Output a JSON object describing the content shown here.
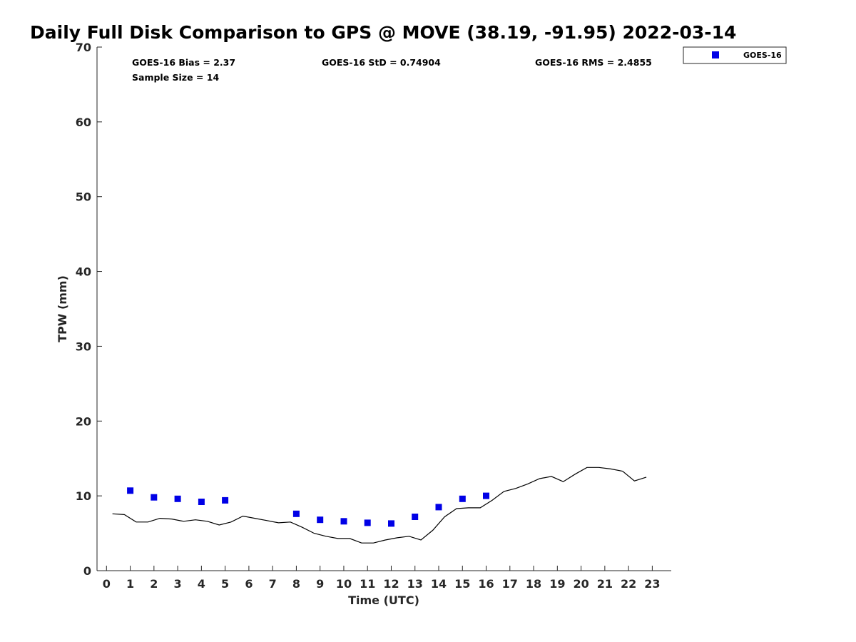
{
  "chart_data": {
    "type": "line",
    "title": "Daily Full Disk Comparison to GPS @ MOVE (38.19, -91.95) 2022-03-14",
    "xlabel": "Time (UTC)",
    "ylabel": "TPW (mm)",
    "xlim": [
      -0.4,
      23.8
    ],
    "ylim": [
      0,
      70
    ],
    "xticks": [
      0,
      1,
      2,
      3,
      4,
      5,
      6,
      7,
      8,
      9,
      10,
      11,
      12,
      13,
      14,
      15,
      16,
      17,
      18,
      19,
      20,
      21,
      22,
      23
    ],
    "yticks": [
      0,
      10,
      20,
      30,
      40,
      50,
      60,
      70
    ],
    "grid": false,
    "legend_position": "top-right-outside",
    "stats": {
      "bias": "GOES-16 Bias = 2.37",
      "std": "GOES-16 StD = 0.74904",
      "rms": "GOES-16 RMS = 2.4855",
      "sample": "Sample Size = 14"
    },
    "series": [
      {
        "style": "line",
        "color": "#000000",
        "x": [
          0.25,
          0.75,
          1.25,
          1.75,
          2.25,
          2.75,
          3.25,
          3.75,
          4.25,
          4.75,
          5.25,
          5.75,
          6.25,
          6.75,
          7.25,
          7.75,
          8.25,
          8.75,
          9.25,
          9.75,
          10.25,
          10.75,
          11.25,
          11.75,
          12.25,
          12.75,
          13.25,
          13.75,
          14.25,
          14.75,
          15.25,
          15.75,
          16.25,
          16.75,
          17.25,
          17.75,
          18.25,
          18.75,
          19.25,
          19.75,
          20.25,
          20.75,
          21.25,
          21.75,
          22.25,
          22.75
        ],
        "values": [
          7.6,
          7.5,
          6.5,
          6.5,
          7.0,
          6.9,
          6.6,
          6.8,
          6.6,
          6.1,
          6.5,
          7.3,
          7.0,
          6.7,
          6.4,
          6.5,
          5.8,
          5.0,
          4.6,
          4.3,
          4.3,
          3.7,
          3.7,
          4.1,
          4.4,
          4.6,
          4.1,
          5.4,
          7.2,
          8.3,
          8.4,
          8.4,
          9.4,
          10.6,
          11.0,
          11.6,
          12.3,
          12.6,
          11.9,
          12.9,
          13.8,
          13.8,
          13.6,
          13.3,
          12.0,
          12.5
        ]
      },
      {
        "name": "GOES-16",
        "style": "markers",
        "marker": "square",
        "color": "#0000e6",
        "x": [
          1,
          2,
          3,
          4,
          5,
          8,
          9,
          10,
          11,
          12,
          13,
          14,
          15,
          16
        ],
        "values": [
          10.7,
          9.8,
          9.6,
          9.2,
          9.4,
          7.6,
          6.8,
          6.6,
          6.4,
          6.3,
          7.2,
          8.5,
          9.6,
          10.0
        ]
      }
    ]
  }
}
